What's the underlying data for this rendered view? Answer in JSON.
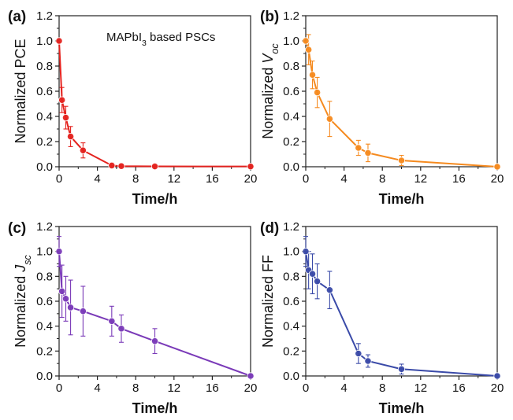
{
  "chart_data": [
    {
      "type": "line",
      "panel_label": "(a)",
      "ylabel_parts": [
        {
          "t": "Normalized PCE"
        }
      ],
      "xlabel": "Time/h",
      "annotation_parts": [
        {
          "t": "MAPbI"
        },
        {
          "t": "3",
          "sub": true
        },
        {
          "t": " based PSCs"
        }
      ],
      "color": "#e4231f",
      "xlim": [
        0,
        20
      ],
      "ylim": [
        0,
        1.2
      ],
      "xticks": [
        0,
        4,
        8,
        12,
        16,
        20
      ],
      "yticks": [
        "0.0",
        "0.2",
        "0.4",
        "0.6",
        "0.8",
        "1.0",
        "1.2"
      ],
      "series": [
        {
          "x": [
            0,
            0.3,
            0.7,
            1.2,
            2.5,
            5.5,
            6.5,
            10,
            20
          ],
          "y": [
            1.0,
            0.53,
            0.39,
            0.24,
            0.13,
            0.01,
            0.005,
            0.003,
            0.002
          ],
          "err": [
            0,
            0.1,
            0.09,
            0.08,
            0.06,
            0.02,
            0.01,
            0.005,
            0.005
          ]
        }
      ]
    },
    {
      "type": "line",
      "panel_label": "(b)",
      "ylabel_parts": [
        {
          "t": "Normalized "
        },
        {
          "t": "V",
          "italic": true
        },
        {
          "t": "oc",
          "sub": true,
          "italic": true
        }
      ],
      "xlabel": "Time/h",
      "color": "#f58a1f",
      "xlim": [
        0,
        20
      ],
      "ylim": [
        0,
        1.2
      ],
      "xticks": [
        0,
        4,
        8,
        12,
        16,
        20
      ],
      "yticks": [
        "0.0",
        "0.2",
        "0.4",
        "0.6",
        "0.8",
        "1.0",
        "1.2"
      ],
      "series": [
        {
          "x": [
            0,
            0.3,
            0.7,
            1.2,
            2.5,
            5.5,
            6.5,
            10,
            20
          ],
          "y": [
            1.0,
            0.93,
            0.73,
            0.59,
            0.38,
            0.15,
            0.11,
            0.05,
            0.0
          ],
          "err": [
            0,
            0.12,
            0.11,
            0.12,
            0.14,
            0.06,
            0.07,
            0.04,
            0.01
          ]
        }
      ]
    },
    {
      "type": "line",
      "panel_label": "(c)",
      "ylabel_parts": [
        {
          "t": "Normalized "
        },
        {
          "t": "J",
          "italic": true
        },
        {
          "t": "sc",
          "sub": true,
          "italic": true
        }
      ],
      "xlabel": "Time/h",
      "color": "#7a3ab8",
      "xlim": [
        0,
        20
      ],
      "ylim": [
        0,
        1.2
      ],
      "xticks": [
        0,
        4,
        8,
        12,
        16,
        20
      ],
      "yticks": [
        "0.0",
        "0.2",
        "0.4",
        "0.6",
        "0.8",
        "1.0",
        "1.2"
      ],
      "series": [
        {
          "x": [
            0,
            0.3,
            0.7,
            1.2,
            2.5,
            5.5,
            6.5,
            10,
            20
          ],
          "y": [
            1.0,
            0.68,
            0.62,
            0.55,
            0.52,
            0.44,
            0.38,
            0.28,
            0.0
          ],
          "err": [
            0.12,
            0.21,
            0.18,
            0.22,
            0.2,
            0.12,
            0.11,
            0.1,
            0.01
          ]
        }
      ]
    },
    {
      "type": "line",
      "panel_label": "(d)",
      "ylabel_parts": [
        {
          "t": "Normalized FF"
        }
      ],
      "xlabel": "Time/h",
      "color": "#3a4aa8",
      "xlim": [
        0,
        20
      ],
      "ylim": [
        0,
        1.2
      ],
      "xticks": [
        0,
        4,
        8,
        12,
        16,
        20
      ],
      "yticks": [
        "0.0",
        "0.2",
        "0.4",
        "0.6",
        "0.8",
        "1.0",
        "1.2"
      ],
      "series": [
        {
          "x": [
            0,
            0.3,
            0.7,
            1.2,
            2.5,
            5.5,
            6.5,
            10,
            20
          ],
          "y": [
            1.0,
            0.85,
            0.82,
            0.76,
            0.69,
            0.18,
            0.12,
            0.055,
            0.0
          ],
          "err": [
            0.12,
            0.15,
            0.16,
            0.14,
            0.15,
            0.08,
            0.05,
            0.04,
            0.01
          ]
        }
      ]
    }
  ]
}
